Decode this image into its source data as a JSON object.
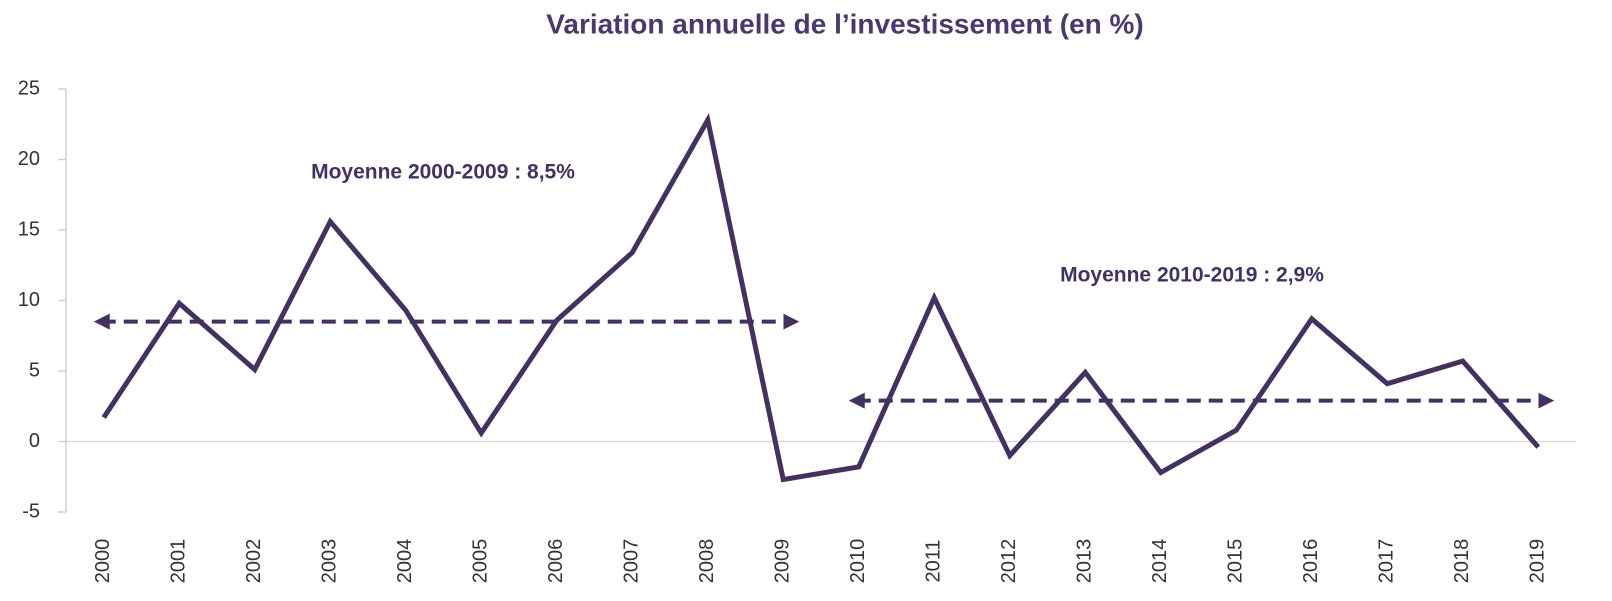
{
  "chart_data": {
    "type": "line",
    "title": "Variation annuelle de l’investissement (en %)",
    "categories": [
      "2000",
      "2001",
      "2002",
      "2003",
      "2004",
      "2005",
      "2006",
      "2007",
      "2008",
      "2009",
      "2010",
      "2011",
      "2012",
      "2013",
      "2014",
      "2015",
      "2016",
      "2017",
      "2018",
      "2019"
    ],
    "values": [
      1.7,
      9.8,
      5.1,
      15.6,
      9.3,
      0.6,
      8.6,
      13.4,
      22.8,
      -2.7,
      -1.8,
      10.2,
      -1.0,
      4.9,
      -2.2,
      0.8,
      8.7,
      4.1,
      5.7,
      -0.4
    ],
    "color": "#433160",
    "ylim": [
      -5,
      25
    ],
    "yticks": [
      -5,
      0,
      5,
      10,
      15,
      20,
      25
    ],
    "averages": [
      {
        "label": "Moyenne 2000-2009 : 8,5%",
        "value": 8.5,
        "from": "2000",
        "to": "2009"
      },
      {
        "label": "Moyenne 2010-2019 : 2,9%",
        "value": 2.9,
        "from": "2010",
        "to": "2019"
      }
    ]
  }
}
